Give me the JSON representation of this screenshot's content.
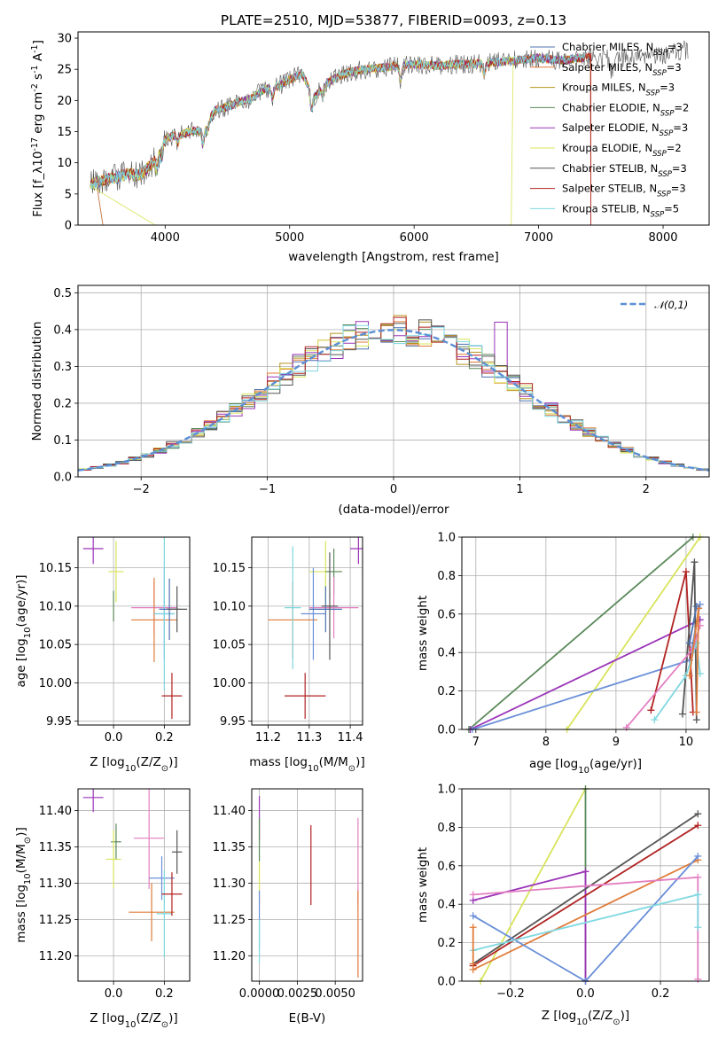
{
  "figure_title": "PLATE=2510, MJD=53877, FIBERID=0093, z=0.13",
  "colors": {
    "Chabrier MILES": "#4c72b0",
    "Salpeter MILES": "#e07b39",
    "Kroupa MILES": "#b8941e",
    "Chabrier ELODIE": "#5b8a5b",
    "Salpeter ELODIE": "#9a35b8",
    "Kroupa ELODIE": "#d8e45a",
    "Chabrier STELIB": "#555555",
    "Salpeter STELIB": "#b22222",
    "Kroupa STELIB": "#7fd8e0",
    "pink": "#e37fc2",
    "blue2": "#6a8fd8",
    "gauss": "#5b8fd4"
  },
  "chart_data": [
    {
      "id": "spectrum",
      "type": "line",
      "title": "PLATE=2510, MJD=53877, FIBERID=0093, z=0.13",
      "xlabel": "wavelength [Angstrom, rest frame]",
      "ylabel": "Flux [f_λ 10^-17 erg cm^-2 s^-1 A^-1]",
      "xlim": [
        3300,
        8370
      ],
      "ylim": [
        0,
        31
      ],
      "xticks": [
        4000,
        5000,
        6000,
        7000,
        8000
      ],
      "yticks": [
        0,
        5,
        10,
        15,
        20,
        25,
        30
      ],
      "grid": false,
      "legend_position": "top-right",
      "continuum": [
        [
          3400,
          6.6
        ],
        [
          3500,
          7.2
        ],
        [
          3600,
          7.6
        ],
        [
          3700,
          8.2
        ],
        [
          3800,
          8.0
        ],
        [
          3900,
          10.0
        ],
        [
          4000,
          14.0
        ],
        [
          4100,
          14.4
        ],
        [
          4200,
          15.0
        ],
        [
          4300,
          15.2
        ],
        [
          4400,
          18.4
        ],
        [
          4500,
          19.0
        ],
        [
          4600,
          19.8
        ],
        [
          4700,
          20.4
        ],
        [
          4800,
          21.8
        ],
        [
          4900,
          22.2
        ],
        [
          5000,
          23.4
        ],
        [
          5100,
          24.2
        ],
        [
          5200,
          20.6
        ],
        [
          5300,
          22.8
        ],
        [
          5400,
          24.0
        ],
        [
          5500,
          24.6
        ],
        [
          5600,
          25.0
        ],
        [
          5700,
          25.2
        ],
        [
          5800,
          25.4
        ],
        [
          5900,
          25.6
        ],
        [
          6000,
          25.8
        ],
        [
          6200,
          25.6
        ],
        [
          6400,
          25.8
        ],
        [
          6600,
          26.0
        ],
        [
          6800,
          26.4
        ],
        [
          7000,
          26.8
        ],
        [
          7200,
          26.4
        ],
        [
          7400,
          27.0
        ],
        [
          7600,
          26.6
        ],
        [
          7800,
          27.2
        ],
        [
          8000,
          27.4
        ],
        [
          8100,
          28.0
        ],
        [
          8200,
          28.0
        ]
      ],
      "series": [
        {
          "name": "Chabrier MILES, N_SSP=3",
          "legend_label": "Chabrier MILES, N",
          "sub": "SSP",
          "suffix": "=3",
          "color_key": "Chabrier MILES",
          "start": 3450,
          "end": 7420,
          "drop_left": 3500,
          "drop_right": 7420
        },
        {
          "name": "Salpeter MILES, N_SSP=3",
          "legend_label": "Salpeter MILES, N",
          "sub": "SSP",
          "suffix": "=3",
          "color_key": "Salpeter MILES",
          "start": 3450,
          "end": 7420,
          "drop_left": 3500,
          "drop_right": 7420
        },
        {
          "name": "Kroupa MILES, N_SSP=3",
          "legend_label": "Kroupa MILES, N",
          "sub": "SSP",
          "suffix": "=3",
          "color_key": "Kroupa MILES",
          "start": 3400,
          "end": 7380,
          "drop_left": null,
          "drop_right": null
        },
        {
          "name": "Chabrier ELODIE, N_SSP=2",
          "legend_label": "Chabrier ELODIE, N",
          "sub": "SSP",
          "suffix": "=2",
          "color_key": "Chabrier ELODIE",
          "start": 3400,
          "end": 7380,
          "drop_left": null,
          "drop_right": null
        },
        {
          "name": "Salpeter ELODIE, N_SSP=3",
          "legend_label": "Salpeter ELODIE, N",
          "sub": "SSP",
          "suffix": "=3",
          "color_key": "Salpeter ELODIE",
          "start": 3400,
          "end": 7380,
          "drop_left": null,
          "drop_right": null
        },
        {
          "name": "Kroupa ELODIE, N_SSP=2",
          "legend_label": "Kroupa ELODIE, N",
          "sub": "SSP",
          "suffix": "=2",
          "color_key": "Kroupa ELODIE",
          "start": 3400,
          "end": 6800,
          "drop_left": 3920,
          "drop_right": 6780
        },
        {
          "name": "Chabrier STELIB, N_SSP=3",
          "legend_label": "Chabrier STELIB, N",
          "sub": "SSP",
          "suffix": "=3",
          "color_key": "Chabrier STELIB",
          "start": 3400,
          "end": 8200,
          "drop_left": null,
          "drop_right": null
        },
        {
          "name": "Salpeter STELIB, N_SSP=3",
          "legend_label": "Salpeter STELIB, N",
          "sub": "SSP",
          "suffix": "=3",
          "color_key": "Salpeter STELIB",
          "start": 3400,
          "end": 7420,
          "drop_left": null,
          "drop_right": 7420
        },
        {
          "name": "Kroupa STELIB, N_SSP=5",
          "legend_label": "Kroupa STELIB, N",
          "sub": "SSP",
          "suffix": "=5",
          "color_key": "Kroupa STELIB",
          "start": 3400,
          "end": 7380,
          "drop_left": null,
          "drop_right": null
        }
      ]
    },
    {
      "id": "residuals",
      "type": "line",
      "xlabel": "(data-model)/error",
      "ylabel": "Normed distribution",
      "xlim": [
        -2.5,
        2.5
      ],
      "ylim": [
        0,
        0.52
      ],
      "xticks": [
        -2,
        -1,
        0,
        1,
        2
      ],
      "yticks": [
        0.0,
        0.1,
        0.2,
        0.3,
        0.4,
        0.5
      ],
      "grid": true,
      "legend_position": "top-right",
      "legend": "𝒩(0,1)",
      "gaussian": {
        "mean": 0,
        "sigma": 1
      },
      "bin_width": 0.1,
      "hist_colors": [
        "Chabrier MILES",
        "Salpeter MILES",
        "Kroupa MILES",
        "Chabrier ELODIE",
        "Salpeter ELODIE",
        "Kroupa ELODIE",
        "Chabrier STELIB",
        "Salpeter STELIB",
        "Kroupa STELIB"
      ]
    },
    {
      "id": "Z_age",
      "type": "scatter",
      "xlabel": "Z [log10(Z/Z⊙)]",
      "ylabel": "age [log10(age/yr)]",
      "xlim": [
        -0.14,
        0.3
      ],
      "ylim": [
        9.945,
        10.19
      ],
      "xticks": [
        0.0,
        0.2
      ],
      "yticks": [
        9.95,
        10.0,
        10.05,
        10.1,
        10.15
      ],
      "grid": true,
      "points": [
        {
          "x": -0.08,
          "y": 10.175,
          "xerr": 0.04,
          "yerr": 0.02,
          "c": "Salpeter ELODIE"
        },
        {
          "x": 0.01,
          "y": 10.145,
          "xerr": 0.03,
          "yerr": 0.04,
          "c": "Kroupa ELODIE"
        },
        {
          "x": 0.0,
          "y": 10.1,
          "xerr": 0.0,
          "yerr": 0.02,
          "c": "Chabrier ELODIE"
        },
        {
          "x": 0.16,
          "y": 10.098,
          "xerr": 0.09,
          "yerr": 0.035,
          "c": "pink"
        },
        {
          "x": 0.16,
          "y": 10.082,
          "xerr": 0.09,
          "yerr": 0.055,
          "c": "Salpeter MILES"
        },
        {
          "x": 0.2,
          "y": 10.09,
          "xerr": 0.04,
          "yerr": 0.06,
          "c": "blue2"
        },
        {
          "x": 0.2,
          "y": 10.09,
          "xerr": 0.04,
          "yerr": 0.1,
          "c": "Kroupa STELIB"
        },
        {
          "x": 0.22,
          "y": 10.096,
          "xerr": 0.04,
          "yerr": 0.04,
          "c": "Chabrier MILES"
        },
        {
          "x": 0.25,
          "y": 10.096,
          "xerr": 0.04,
          "yerr": 0.03,
          "c": "Chabrier STELIB"
        },
        {
          "x": 0.23,
          "y": 9.983,
          "xerr": 0.04,
          "yerr": 0.03,
          "c": "Salpeter STELIB"
        }
      ]
    },
    {
      "id": "mass_age",
      "type": "scatter",
      "xlabel": "mass [log10(M/M⊙)]",
      "ylabel": "",
      "xlim": [
        11.16,
        11.43
      ],
      "ylim": [
        9.945,
        10.19
      ],
      "xticks": [
        11.2,
        11.3,
        11.4
      ],
      "yticks": [
        9.95,
        10.0,
        10.05,
        10.1,
        10.15
      ],
      "grid": true,
      "points": [
        {
          "x": 11.42,
          "y": 10.175,
          "xerr": 0.02,
          "yerr": 0.02,
          "c": "Salpeter ELODIE"
        },
        {
          "x": 11.34,
          "y": 10.145,
          "xerr": 0.04,
          "yerr": 0.04,
          "c": "Kroupa ELODIE"
        },
        {
          "x": 11.36,
          "y": 10.145,
          "xerr": 0.02,
          "yerr": 0.03,
          "c": "Chabrier ELODIE"
        },
        {
          "x": 11.36,
          "y": 10.098,
          "xerr": 0.06,
          "yerr": 0.04,
          "c": "pink"
        },
        {
          "x": 11.26,
          "y": 10.082,
          "xerr": 0.06,
          "yerr": 0.05,
          "c": "Salpeter MILES"
        },
        {
          "x": 11.31,
          "y": 10.09,
          "xerr": 0.03,
          "yerr": 0.06,
          "c": "blue2"
        },
        {
          "x": 11.26,
          "y": 10.098,
          "xerr": 0.02,
          "yerr": 0.08,
          "c": "Kroupa STELIB"
        },
        {
          "x": 11.34,
          "y": 10.096,
          "xerr": 0.04,
          "yerr": 0.03,
          "c": "Chabrier MILES"
        },
        {
          "x": 11.35,
          "y": 10.1,
          "xerr": 0.02,
          "yerr": 0.07,
          "c": "Chabrier STELIB"
        },
        {
          "x": 11.29,
          "y": 9.983,
          "xerr": 0.05,
          "yerr": 0.03,
          "c": "Salpeter STELIB"
        }
      ]
    },
    {
      "id": "age_weight",
      "type": "line",
      "xlabel": "age [log10(age/yr)]",
      "ylabel": "mass weight",
      "xlim": [
        6.8,
        10.33
      ],
      "ylim": [
        0.0,
        1.0
      ],
      "xticks": [
        7,
        8,
        9,
        10
      ],
      "yticks": [
        0.0,
        0.2,
        0.4,
        0.6,
        0.8,
        1.0
      ],
      "grid": true,
      "series": [
        {
          "c": "Chabrier ELODIE",
          "points": [
            [
              6.9,
              0.0
            ],
            [
              10.1,
              1.0
            ]
          ]
        },
        {
          "c": "Kroupa ELODIE",
          "points": [
            [
              8.3,
              0.0
            ],
            [
              10.2,
              1.0
            ]
          ]
        },
        {
          "c": "Salpeter ELODIE",
          "points": [
            [
              6.92,
              0.0
            ],
            [
              10.2,
              0.57
            ]
          ]
        },
        {
          "c": "blue2",
          "points": [
            [
              6.95,
              0.0
            ],
            [
              10.05,
              0.36
            ],
            [
              10.2,
              0.65
            ]
          ]
        },
        {
          "c": "Salpeter STELIB",
          "points": [
            [
              9.5,
              0.1
            ],
            [
              10.0,
              0.82
            ],
            [
              10.1,
              0.09
            ]
          ]
        },
        {
          "c": "Chabrier STELIB",
          "points": [
            [
              9.95,
              0.08
            ],
            [
              10.12,
              0.87
            ],
            [
              10.15,
              0.05
            ]
          ]
        },
        {
          "c": "Kroupa STELIB",
          "points": [
            [
              9.55,
              0.05
            ],
            [
              10.0,
              0.28
            ],
            [
              10.15,
              0.45
            ],
            [
              10.2,
              0.29
            ]
          ]
        },
        {
          "c": "pink",
          "points": [
            [
              9.15,
              0.01
            ],
            [
              10.1,
              0.42
            ],
            [
              10.2,
              0.54
            ]
          ]
        },
        {
          "c": "Salpeter MILES",
          "points": [
            [
              10.05,
              0.28
            ],
            [
              10.18,
              0.63
            ],
            [
              10.15,
              0.09
            ]
          ]
        },
        {
          "c": "Chabrier MILES",
          "points": [
            [
              10.05,
              0.45
            ],
            [
              10.15,
              0.64
            ]
          ]
        }
      ]
    },
    {
      "id": "Z_mass",
      "type": "scatter",
      "xlabel": "Z [log10(Z/Z⊙)]",
      "ylabel": "mass [log10(M/M⊙)]",
      "xlim": [
        -0.14,
        0.3
      ],
      "ylim": [
        11.165,
        11.43
      ],
      "xticks": [
        0.0,
        0.2
      ],
      "yticks": [
        11.2,
        11.25,
        11.3,
        11.35,
        11.4
      ],
      "grid": true,
      "points": [
        {
          "x": -0.08,
          "y": 11.418,
          "xerr": 0.04,
          "yerr": 0.02,
          "c": "Salpeter ELODIE"
        },
        {
          "x": 0.01,
          "y": 11.357,
          "xerr": 0.02,
          "yerr": 0.025,
          "c": "Chabrier ELODIE"
        },
        {
          "x": 0.0,
          "y": 11.333,
          "xerr": 0.03,
          "yerr": 0.04,
          "c": "Kroupa ELODIE"
        },
        {
          "x": 0.14,
          "y": 11.362,
          "xerr": 0.06,
          "yerr": 0.07,
          "c": "pink"
        },
        {
          "x": 0.19,
          "y": 11.307,
          "xerr": 0.05,
          "yerr": 0.03,
          "c": "blue2"
        },
        {
          "x": 0.15,
          "y": 11.26,
          "xerr": 0.09,
          "yerr": 0.04,
          "c": "Salpeter MILES"
        },
        {
          "x": 0.2,
          "y": 11.258,
          "xerr": 0.03,
          "yerr": 0.06,
          "c": "Kroupa STELIB"
        },
        {
          "x": 0.25,
          "y": 11.343,
          "xerr": 0.02,
          "yerr": 0.03,
          "c": "Chabrier STELIB"
        },
        {
          "x": 0.23,
          "y": 11.285,
          "xerr": 0.04,
          "yerr": 0.03,
          "c": "Salpeter STELIB"
        }
      ]
    },
    {
      "id": "ebv_mass",
      "type": "scatter",
      "xlabel": "E(B-V)",
      "ylabel": "",
      "xlim": [
        -0.0005,
        0.0068
      ],
      "ylim": [
        11.165,
        11.43
      ],
      "xticks": [
        0.0,
        0.0025,
        0.005
      ],
      "yticks": [
        11.2,
        11.25,
        11.3,
        11.35,
        11.4
      ],
      "grid": true,
      "points": [
        {
          "x": 0.0,
          "y": 11.39,
          "xerr": 0,
          "yerr": 0.03,
          "c": "Salpeter ELODIE"
        },
        {
          "x": 0.0,
          "y": 11.36,
          "xerr": 0,
          "yerr": 0.03,
          "c": "Chabrier ELODIE"
        },
        {
          "x": 0.0,
          "y": 11.3,
          "xerr": 0,
          "yerr": 0.03,
          "c": "Kroupa ELODIE"
        },
        {
          "x": 0.0,
          "y": 11.25,
          "xerr": 0,
          "yerr": 0.04,
          "c": "blue2"
        },
        {
          "x": 0.0,
          "y": 11.22,
          "xerr": 0,
          "yerr": 0.03,
          "c": "Kroupa STELIB"
        },
        {
          "x": 0.0034,
          "y": 11.325,
          "xerr": 0,
          "yerr": 0.055,
          "c": "Salpeter STELIB"
        },
        {
          "x": 0.0065,
          "y": 11.33,
          "xerr": 0,
          "yerr": 0.06,
          "c": "pink"
        },
        {
          "x": 0.0065,
          "y": 11.23,
          "xerr": 0,
          "yerr": 0.06,
          "c": "Salpeter MILES"
        }
      ]
    },
    {
      "id": "Z_weight",
      "type": "line",
      "xlabel": "Z [log10(Z/Z⊙)]",
      "ylabel": "mass weight",
      "xlim": [
        -0.33,
        0.33
      ],
      "ylim": [
        0.0,
        1.0
      ],
      "xticks": [
        -0.2,
        0.0,
        0.2
      ],
      "yticks": [
        0.0,
        0.2,
        0.4,
        0.6,
        0.8,
        1.0
      ],
      "grid": true,
      "series": [
        {
          "c": "Kroupa ELODIE",
          "points": [
            [
              -0.28,
              0.0
            ],
            [
              0.0,
              1.0
            ]
          ]
        },
        {
          "c": "Chabrier ELODIE",
          "points": [
            [
              0.0,
              1.0
            ],
            [
              0.0,
              0.0
            ]
          ]
        },
        {
          "c": "Salpeter ELODIE",
          "points": [
            [
              -0.3,
              0.42
            ],
            [
              0.0,
              0.57
            ],
            [
              0.0,
              0.0
            ]
          ]
        },
        {
          "c": "Chabrier STELIB",
          "points": [
            [
              -0.3,
              0.09
            ],
            [
              0.3,
              0.87
            ]
          ]
        },
        {
          "c": "Salpeter STELIB",
          "points": [
            [
              -0.3,
              0.08
            ],
            [
              0.3,
              0.81
            ]
          ]
        },
        {
          "c": "Salpeter MILES",
          "points": [
            [
              -0.3,
              0.06
            ],
            [
              0.3,
              0.63
            ]
          ]
        },
        {
          "c": "blue2",
          "points": [
            [
              -0.3,
              0.34
            ],
            [
              0.0,
              0.0
            ],
            [
              0.3,
              0.65
            ]
          ]
        },
        {
          "c": "pink",
          "points": [
            [
              -0.3,
              0.45
            ],
            [
              0.3,
              0.54
            ],
            [
              0.3,
              0.01
            ]
          ]
        },
        {
          "c": "Kroupa STELIB",
          "points": [
            [
              -0.3,
              0.16
            ],
            [
              0.3,
              0.45
            ],
            [
              0.3,
              0.28
            ]
          ]
        },
        {
          "c": "Salpeter MILES",
          "points": [
            [
              -0.3,
              0.28
            ],
            [
              -0.3,
              0.09
            ]
          ]
        }
      ]
    }
  ]
}
